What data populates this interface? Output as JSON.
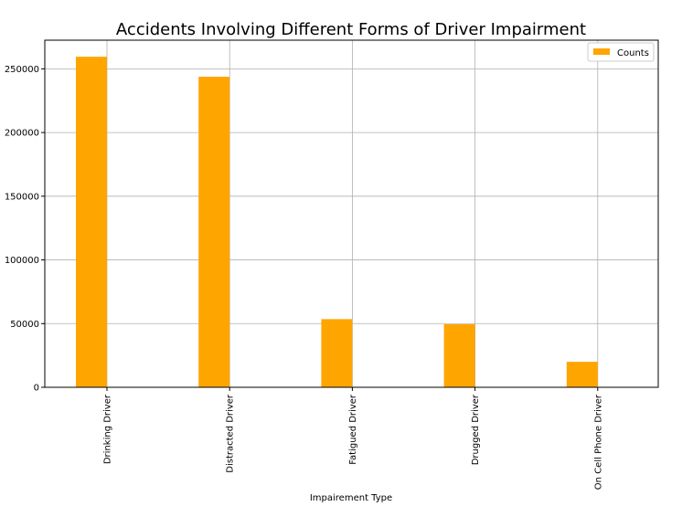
{
  "chart_data": {
    "type": "bar",
    "title": "Accidents Involving Different Forms of Driver Impairment",
    "xlabel": "Impairement Type",
    "ylabel": "",
    "categories": [
      "Drinking Driver",
      "Distracted Driver",
      "Fatigued Driver",
      "Drugged Driver",
      "On Cell Phone Driver"
    ],
    "series": [
      {
        "name": "Counts",
        "values": [
          259500,
          243800,
          53500,
          49500,
          20000
        ]
      }
    ],
    "yticks": [
      0,
      50000,
      100000,
      150000,
      200000,
      250000
    ],
    "ytick_labels": [
      "0",
      "50000",
      "100000",
      "150000",
      "200000",
      "250000"
    ],
    "ylim": [
      0,
      272500
    ],
    "grid": true,
    "legend_position": "top-right",
    "bar_color": "#ffa500"
  }
}
